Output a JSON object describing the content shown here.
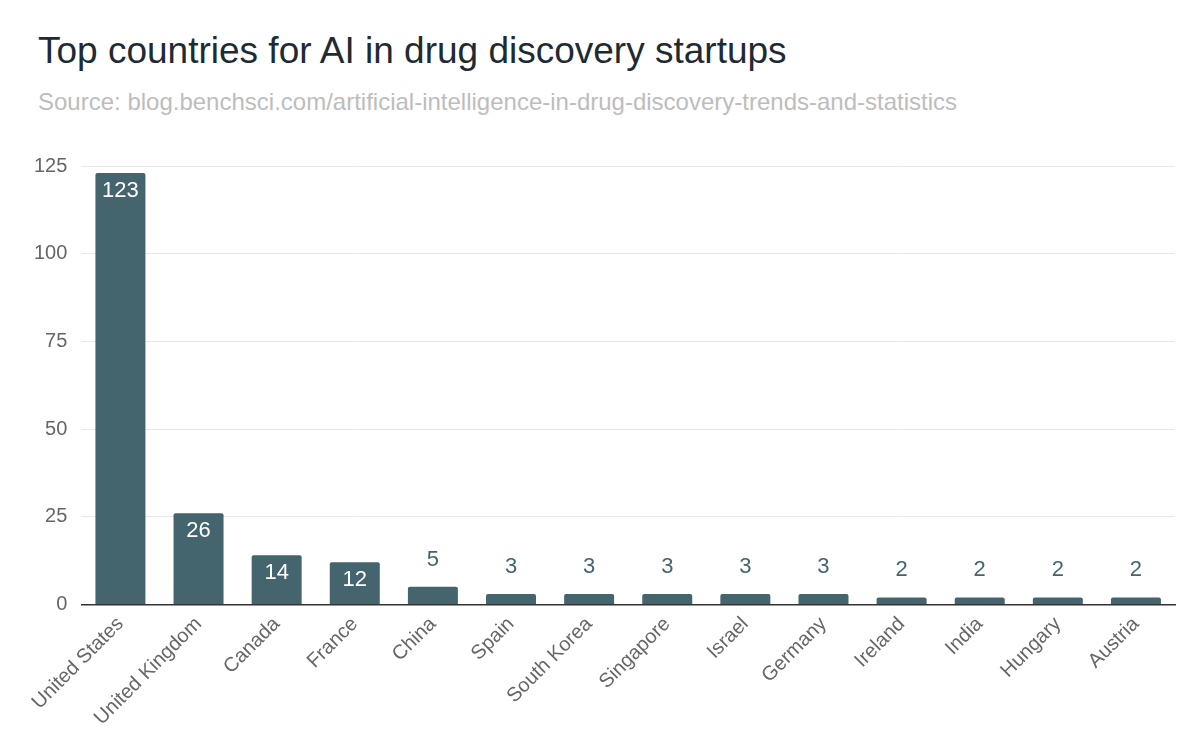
{
  "chart_data": {
    "type": "bar",
    "title": "Top countries for AI in drug discovery startups",
    "subtitle": "Source: blog.benchsci.com/artificial-intelligence-in-drug-discovery-trends-and-statistics",
    "categories": [
      "United States",
      "United Kingdom",
      "Canada",
      "France",
      "China",
      "Spain",
      "South Korea",
      "Singapore",
      "Israel",
      "Germany",
      "Ireland",
      "India",
      "Hungary",
      "Austria"
    ],
    "values": [
      123,
      26,
      14,
      12,
      5,
      3,
      3,
      3,
      3,
      3,
      2,
      2,
      2,
      2
    ],
    "color": "#44646e",
    "ylim": [
      0,
      125
    ],
    "yticks": [
      0,
      25,
      50,
      75,
      100,
      125
    ],
    "grid": true,
    "data_labels": true
  }
}
